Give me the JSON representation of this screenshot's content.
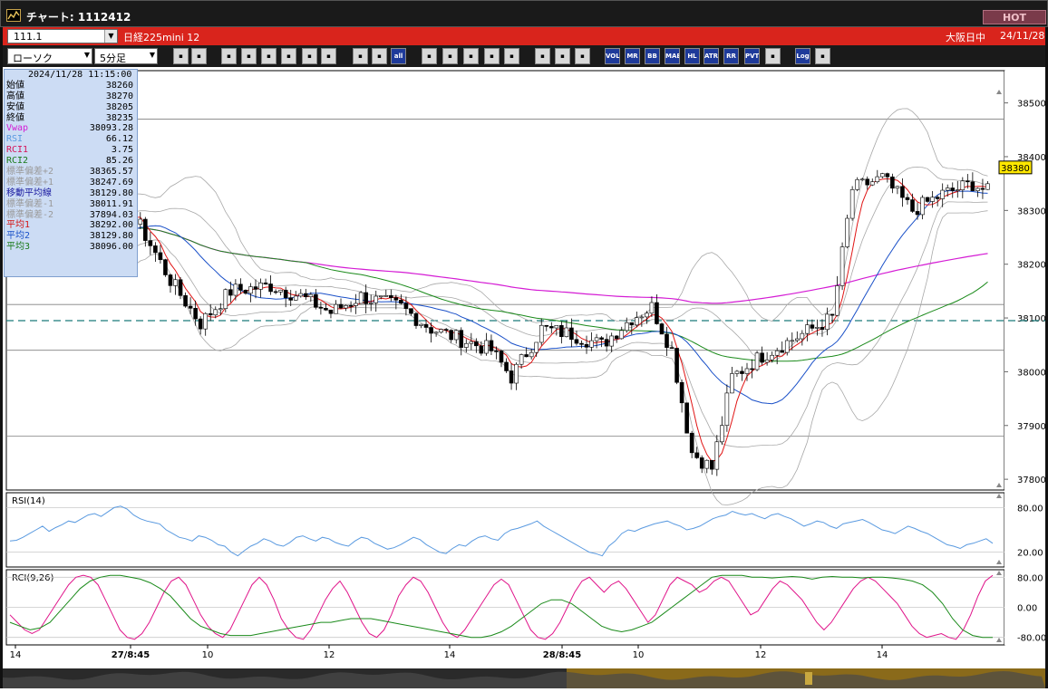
{
  "window": {
    "title": "チャート: 1112412",
    "hot_label": "HOT"
  },
  "symbol_bar": {
    "code": "111.1",
    "name": "日経225mini 12",
    "status": "大阪日中",
    "date": "24/11/28"
  },
  "toolbar": {
    "chart_type": "ローソク",
    "interval": "5分足",
    "buttons": [
      "search-icon",
      "crosshair-icon",
      "pen-icon",
      "line-draw-icon",
      "cursor-icon",
      "eraser-icon",
      "note-icon",
      "trash-icon",
      "candle-icon",
      "bar-icon",
      "all",
      "scissors-icon",
      "zoom-icon",
      "fit-icon",
      "refresh-icon",
      "lock-icon",
      "grid-icon",
      "wrench-icon",
      "palette-icon",
      "VOL",
      "MR",
      "BB",
      "MAE",
      "HL",
      "ATR",
      "RR",
      "PVT",
      "window-icon",
      "Log",
      "exit-icon"
    ]
  },
  "info_panel": {
    "datetime": "2024/11/28  11:15:00",
    "rows": [
      {
        "label": "始値",
        "value": "38260",
        "color": "#000000"
      },
      {
        "label": "高値",
        "value": "38270",
        "color": "#000000"
      },
      {
        "label": "安値",
        "value": "38205",
        "color": "#000000"
      },
      {
        "label": "終値",
        "value": "38235",
        "color": "#000000"
      },
      {
        "label": "Vwap",
        "value": "38093.28",
        "color": "#d41cd4"
      },
      {
        "label": "RSI",
        "value": "66.12",
        "color": "#5a9ae0"
      },
      {
        "label": "RCI1",
        "value": "3.75",
        "color": "#d4145a"
      },
      {
        "label": "RCI2",
        "value": "85.26",
        "color": "#1a7a1a"
      },
      {
        "label": "標準偏差+2",
        "value": "38365.57",
        "color": "#9a9a9a"
      },
      {
        "label": "標準偏差+1",
        "value": "38247.69",
        "color": "#9a9a9a"
      },
      {
        "label": "移動平均線",
        "value": "38129.80",
        "color": "#1a1aa0"
      },
      {
        "label": "標準偏差-1",
        "value": "38011.91",
        "color": "#9a9a9a"
      },
      {
        "label": "標準偏差-2",
        "value": "37894.03",
        "color": "#9a9a9a"
      },
      {
        "label": "平均1",
        "value": "38292.00",
        "color": "#d41414"
      },
      {
        "label": "平均2",
        "value": "38129.80",
        "color": "#1a50c8"
      },
      {
        "label": "平均3",
        "value": "38096.00",
        "color": "#1a7a1a"
      }
    ]
  },
  "chart_data": [
    {
      "type": "candlestick",
      "y_ticks": [
        "38500",
        "38400",
        "38300",
        "38200",
        "38100",
        "38000",
        "37900",
        "37800"
      ],
      "ylim": [
        37780,
        38560
      ],
      "current_price": "38380",
      "h_lines": [
        38470,
        38125,
        38040,
        37880
      ],
      "dashed_line": 38095,
      "x_tick_labels": [
        "14",
        "27/8:45",
        "10",
        "12",
        "14",
        "28/8:45",
        "10",
        "12",
        "14"
      ],
      "colors": {
        "up": "#ffffff",
        "down": "#000000",
        "ma1": "#e01414",
        "ma2": "#1a50c8",
        "ma3": "#1a8a1a",
        "vwap": "#d41cd4",
        "band": "#a8a8a8",
        "hline": "#808080",
        "dash": "#1a7a7a"
      }
    },
    {
      "type": "line",
      "title": "RSI(14)",
      "y_ticks": [
        "80.00",
        "20.00"
      ],
      "ylim": [
        0,
        100
      ],
      "series": [
        {
          "values": [
            35,
            36,
            40,
            45,
            50,
            55,
            48,
            53,
            57,
            62,
            60,
            65,
            70,
            72,
            68,
            74,
            80,
            82,
            78,
            70,
            65,
            62,
            60,
            58,
            50,
            45,
            40,
            38,
            35,
            42,
            40,
            36,
            30,
            28,
            20,
            15,
            22,
            28,
            32,
            38,
            35,
            30,
            28,
            33,
            40,
            42,
            38,
            35,
            40,
            38,
            33,
            30,
            28,
            35,
            40,
            38,
            32,
            28,
            24,
            26,
            30,
            35,
            40,
            37,
            30,
            25,
            20,
            18,
            25,
            30,
            28,
            35,
            40,
            42,
            38,
            36,
            45,
            50,
            52,
            55,
            58,
            62,
            55,
            50,
            45,
            40,
            35,
            30,
            25,
            20,
            18,
            15,
            28,
            35,
            45,
            50,
            48,
            52,
            55,
            58,
            60,
            62,
            58,
            55,
            50,
            52,
            55,
            60,
            65,
            68,
            70,
            75,
            72,
            70,
            72,
            68,
            65,
            70,
            72,
            68,
            65,
            60,
            55,
            58,
            62,
            60,
            55,
            52,
            58,
            60,
            62,
            64,
            60,
            55,
            50,
            48,
            45,
            50,
            55,
            52,
            48,
            45,
            40,
            35,
            30,
            28,
            25,
            30,
            32,
            35,
            38,
            32
          ]
        }
      ]
    },
    {
      "type": "line",
      "title": "RCI(9,26)",
      "y_ticks": [
        "80.00",
        "0.00",
        "-80.00"
      ],
      "ylim": [
        -100,
        100
      ],
      "series": [
        {
          "values": [
            -20,
            -40,
            -60,
            -70,
            -60,
            -30,
            0,
            30,
            60,
            80,
            85,
            80,
            60,
            20,
            -20,
            -60,
            -80,
            -85,
            -70,
            -40,
            0,
            40,
            70,
            80,
            60,
            20,
            -20,
            -50,
            -70,
            -80,
            -60,
            -20,
            20,
            60,
            80,
            60,
            20,
            -30,
            -60,
            -80,
            -85,
            -60,
            -20,
            20,
            50,
            70,
            40,
            0,
            -40,
            -70,
            -80,
            -60,
            -20,
            30,
            60,
            80,
            70,
            40,
            0,
            -40,
            -70,
            -80,
            -60,
            -30,
            0,
            30,
            60,
            75,
            60,
            20,
            -20,
            -60,
            -80,
            -85,
            -70,
            -40,
            0,
            40,
            70,
            80,
            60,
            40,
            60,
            70,
            50,
            20,
            -10,
            -40,
            -20,
            20,
            60,
            80,
            70,
            60,
            40,
            50,
            70,
            80,
            70,
            40,
            10,
            -20,
            -10,
            20,
            50,
            70,
            60,
            40,
            20,
            -10,
            -40,
            -60,
            -40,
            -10,
            20,
            50,
            70,
            80,
            70,
            50,
            30,
            10,
            -20,
            -50,
            -70,
            -80,
            -75,
            -70,
            -80,
            -85,
            -60,
            -20,
            30,
            70,
            85
          ]
        },
        {
          "values": [
            -40,
            -50,
            -60,
            -55,
            -40,
            -10,
            20,
            50,
            70,
            80,
            85,
            85,
            80,
            75,
            65,
            50,
            30,
            0,
            -30,
            -50,
            -60,
            -70,
            -75,
            -75,
            -75,
            -70,
            -65,
            -60,
            -55,
            -50,
            -45,
            -40,
            -40,
            -35,
            -30,
            -30,
            -30,
            -35,
            -40,
            -45,
            -50,
            -55,
            -60,
            -65,
            -70,
            -75,
            -80,
            -80,
            -75,
            -65,
            -50,
            -30,
            -10,
            10,
            20,
            20,
            10,
            -10,
            -30,
            -50,
            -60,
            -65,
            -60,
            -50,
            -40,
            -20,
            0,
            20,
            40,
            60,
            80,
            85,
            85,
            85,
            80,
            80,
            78,
            80,
            82,
            80,
            75,
            80,
            82,
            80,
            80,
            78,
            80,
            80,
            78,
            75,
            70,
            60,
            40,
            10,
            -30,
            -60,
            -75,
            -80,
            -80
          ]
        }
      ]
    }
  ]
}
